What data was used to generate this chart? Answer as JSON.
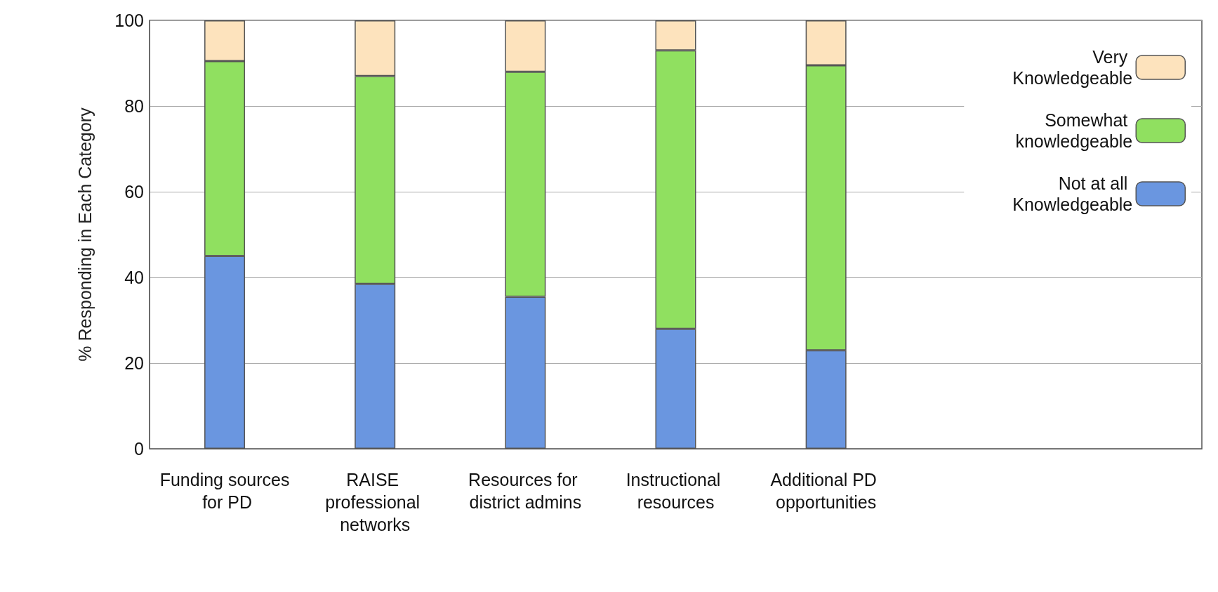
{
  "chart_data": {
    "type": "bar",
    "stacked": true,
    "ylabel": "% Responding in Each Category",
    "categories": [
      "Funding sources for PD",
      "RAISE professional networks",
      "Resources for district admins",
      "Instructional resources",
      "Additional PD opportunities"
    ],
    "series": [
      {
        "name": "Not at all Knowledgeable",
        "color": "#6a96e0",
        "values": [
          45,
          38.5,
          35.5,
          28,
          23
        ]
      },
      {
        "name": "Somewhat knowledgeable",
        "color": "#90e060",
        "values": [
          45.5,
          48.5,
          52.5,
          65,
          66.5
        ]
      },
      {
        "name": "Very Knowledgeable",
        "color": "#fde3bd",
        "values": [
          9.5,
          13,
          12,
          7,
          10.5
        ]
      }
    ],
    "ylim": [
      0,
      100
    ],
    "yticks": [
      0,
      20,
      40,
      60,
      80,
      100
    ],
    "grid": "y",
    "legend": "top right"
  }
}
